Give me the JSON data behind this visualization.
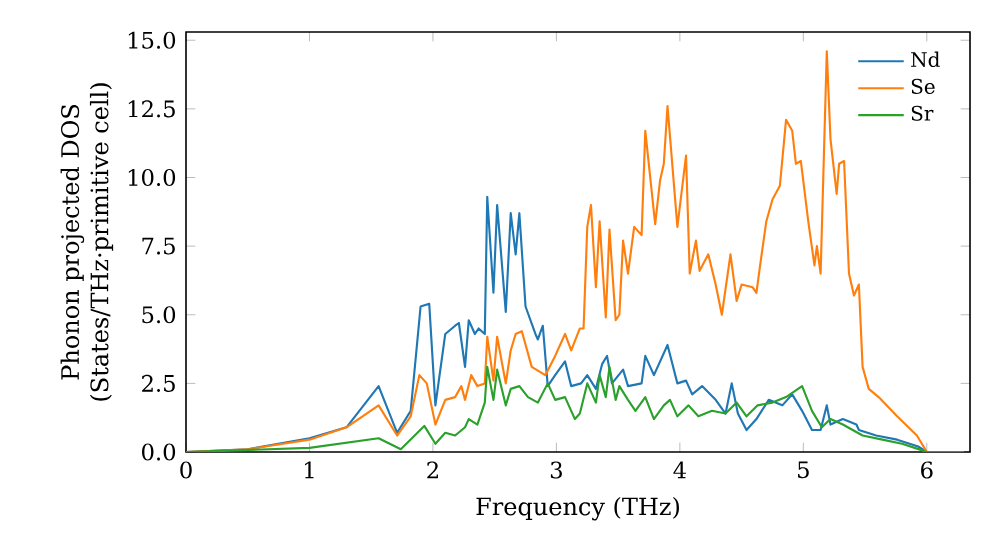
{
  "chart_data": {
    "type": "line",
    "xlabel": "Frequency (THz)",
    "ylabel": "Phonon projected DOS\n(States/THz·primitive cell)",
    "xlim": [
      0,
      6.35
    ],
    "ylim": [
      0,
      15.3
    ],
    "xticks": [
      0,
      1,
      2,
      3,
      4,
      5,
      6
    ],
    "yticks": [
      {
        "value": 0,
        "label": "0.0"
      },
      {
        "value": 2.5,
        "label": "2.5"
      },
      {
        "value": 5,
        "label": "5.0"
      },
      {
        "value": 7.5,
        "label": "7.5"
      },
      {
        "value": 10,
        "label": "10.0"
      },
      {
        "value": 12.5,
        "label": "12.5"
      },
      {
        "value": 15,
        "label": "15.0"
      }
    ],
    "legend": "top right",
    "series": [
      {
        "name": "Nd",
        "color": "#1f77b4",
        "x": [
          0,
          0.5,
          1.0,
          1.3,
          1.56,
          1.71,
          1.82,
          1.9,
          1.97,
          2.02,
          2.1,
          2.18,
          2.21,
          2.26,
          2.29,
          2.34,
          2.37,
          2.42,
          2.44,
          2.49,
          2.52,
          2.59,
          2.63,
          2.67,
          2.7,
          2.75,
          2.83,
          2.85,
          2.89,
          2.93,
          2.99,
          3.07,
          3.12,
          3.2,
          3.25,
          3.32,
          3.37,
          3.41,
          3.45,
          3.54,
          3.58,
          3.69,
          3.72,
          3.79,
          3.9,
          3.98,
          4.05,
          4.1,
          4.18,
          4.29,
          4.37,
          4.42,
          4.47,
          4.54,
          4.62,
          4.72,
          4.83,
          4.91,
          4.99,
          5.07,
          5.14,
          5.19,
          5.22,
          5.32,
          5.43,
          5.45,
          5.59,
          5.76,
          5.93,
          6.0,
          6.3
        ],
        "values": [
          0,
          0.1,
          0.5,
          0.9,
          2.4,
          0.7,
          1.5,
          5.3,
          5.4,
          1.7,
          4.3,
          4.6,
          4.7,
          3.1,
          4.8,
          4.3,
          4.5,
          4.3,
          9.3,
          5.8,
          9.0,
          5.1,
          8.7,
          7.2,
          8.7,
          5.3,
          4.3,
          4.1,
          4.6,
          2.4,
          2.8,
          3.3,
          2.4,
          2.5,
          2.8,
          2.3,
          3.2,
          3.5,
          2.5,
          3.0,
          2.4,
          2.5,
          3.5,
          2.8,
          3.9,
          2.5,
          2.6,
          2.1,
          2.4,
          1.9,
          1.4,
          2.5,
          1.4,
          0.8,
          1.2,
          1.9,
          1.7,
          2.1,
          1.5,
          0.8,
          0.8,
          1.7,
          1.0,
          1.2,
          1.0,
          0.8,
          0.6,
          0.45,
          0.2,
          0,
          0
        ]
      },
      {
        "name": "Se",
        "color": "#ff7f0e",
        "x": [
          0,
          0.5,
          1.0,
          1.3,
          1.56,
          1.71,
          1.82,
          1.89,
          1.95,
          2.02,
          2.1,
          2.18,
          2.23,
          2.26,
          2.31,
          2.36,
          2.42,
          2.44,
          2.49,
          2.52,
          2.59,
          2.63,
          2.67,
          2.72,
          2.8,
          2.91,
          2.99,
          3.07,
          3.12,
          3.19,
          3.22,
          3.25,
          3.28,
          3.32,
          3.35,
          3.4,
          3.43,
          3.48,
          3.51,
          3.54,
          3.58,
          3.63,
          3.69,
          3.72,
          3.8,
          3.84,
          3.87,
          3.9,
          3.98,
          4.05,
          4.08,
          4.13,
          4.16,
          4.23,
          4.29,
          4.34,
          4.41,
          4.46,
          4.5,
          4.59,
          4.62,
          4.65,
          4.7,
          4.75,
          4.81,
          4.86,
          4.91,
          4.94,
          4.98,
          5.04,
          5.09,
          5.11,
          5.14,
          5.19,
          5.22,
          5.27,
          5.29,
          5.33,
          5.37,
          5.41,
          5.45,
          5.48,
          5.53,
          5.61,
          5.76,
          5.92,
          6.0,
          6.3
        ],
        "values": [
          0,
          0.1,
          0.45,
          0.9,
          1.7,
          0.6,
          1.3,
          2.8,
          2.5,
          1.0,
          1.9,
          2.0,
          2.4,
          1.9,
          2.8,
          2.4,
          2.5,
          4.2,
          2.6,
          4.2,
          2.5,
          3.7,
          4.3,
          4.4,
          3.1,
          2.8,
          3.5,
          4.3,
          3.7,
          4.5,
          4.5,
          8.2,
          9.0,
          6.0,
          8.4,
          4.9,
          8.1,
          4.8,
          5.0,
          7.7,
          6.5,
          8.2,
          7.9,
          11.7,
          8.3,
          9.9,
          10.5,
          12.6,
          8.2,
          10.8,
          6.5,
          7.7,
          6.6,
          7.2,
          6.1,
          5.0,
          7.2,
          5.5,
          6.1,
          6.0,
          5.8,
          6.8,
          8.4,
          9.2,
          9.7,
          12.1,
          11.7,
          10.5,
          10.6,
          8.4,
          6.8,
          7.5,
          6.5,
          14.6,
          11.4,
          9.4,
          10.5,
          10.6,
          6.5,
          5.7,
          6.1,
          3.1,
          2.3,
          2.0,
          1.3,
          0.6,
          0,
          0
        ]
      },
      {
        "name": "Sr",
        "color": "#2ca02c",
        "x": [
          0,
          1.0,
          1.56,
          1.74,
          1.93,
          2.02,
          2.1,
          2.18,
          2.26,
          2.29,
          2.36,
          2.42,
          2.44,
          2.49,
          2.52,
          2.59,
          2.63,
          2.7,
          2.77,
          2.85,
          2.93,
          2.99,
          3.07,
          3.15,
          3.19,
          3.25,
          3.32,
          3.35,
          3.4,
          3.43,
          3.48,
          3.51,
          3.58,
          3.64,
          3.72,
          3.79,
          3.87,
          3.92,
          3.98,
          4.07,
          4.15,
          4.26,
          4.37,
          4.46,
          4.54,
          4.63,
          4.75,
          4.86,
          4.99,
          5.07,
          5.15,
          5.22,
          5.32,
          5.4,
          5.48,
          5.64,
          5.8,
          5.97,
          6.0,
          6.3
        ],
        "values": [
          0,
          0.15,
          0.5,
          0.1,
          0.95,
          0.3,
          0.7,
          0.6,
          0.9,
          1.2,
          1.0,
          1.8,
          3.1,
          1.9,
          3.0,
          1.7,
          2.3,
          2.4,
          2.0,
          1.8,
          2.5,
          1.9,
          2.0,
          1.2,
          1.4,
          2.5,
          1.8,
          2.8,
          2.0,
          3.1,
          1.9,
          2.4,
          1.9,
          1.5,
          2.0,
          1.2,
          1.7,
          1.9,
          1.3,
          1.7,
          1.3,
          1.5,
          1.4,
          1.8,
          1.3,
          1.7,
          1.8,
          2.0,
          2.4,
          1.5,
          0.9,
          1.2,
          1.0,
          0.8,
          0.6,
          0.45,
          0.3,
          0.05,
          0,
          0
        ]
      }
    ]
  }
}
